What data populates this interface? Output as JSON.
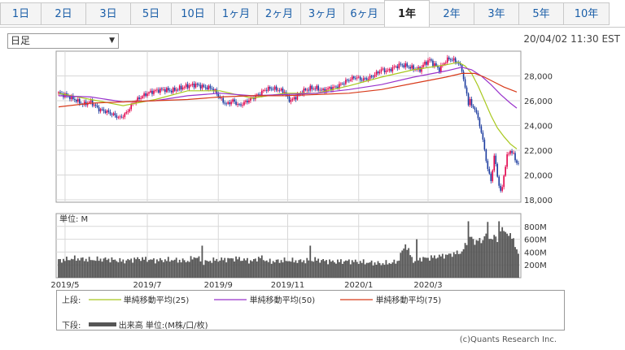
{
  "tabs": [
    "1日",
    "2日",
    "3日",
    "5日",
    "10日",
    "1ヶ月",
    "2ヶ月",
    "3ヶ月",
    "6ヶ月",
    "1年",
    "2年",
    "3年",
    "5年",
    "10年"
  ],
  "active_tab": "1年",
  "period_select": {
    "value": "日足"
  },
  "datetime": "20/04/02 11:30 EST",
  "volume_unit": "単位: M",
  "legend": {
    "upper_label": "上段:",
    "ma25": "単純移動平均(25)",
    "ma50": "単純移動平均(50)",
    "ma75": "単純移動平均(75)",
    "lower_label": "下段:",
    "volume": "出来高 単位:(M株/口/枚)"
  },
  "colors": {
    "ma25": "#a8c81e",
    "ma50": "#9933cc",
    "ma75": "#d83a1a",
    "up": "#e2004a",
    "down": "#1a3a9e",
    "volume": "#555555"
  },
  "copyright": "(c)Quants Research Inc.",
  "chart_data": [
    {
      "type": "line",
      "title": "",
      "x_tick_labels": [
        "2019/5",
        "2019/7",
        "2019/9",
        "2019/11",
        "2020/1",
        "2020/3"
      ],
      "y_tick_labels": [
        "18,000",
        "20,000",
        "22,000",
        "24,000",
        "26,000",
        "28,000"
      ],
      "ylim": [
        17800,
        30000
      ],
      "close_points": [
        [
          0,
          26600
        ],
        [
          5,
          26400
        ],
        [
          10,
          26100
        ],
        [
          15,
          25700
        ],
        [
          20,
          25900
        ],
        [
          25,
          25300
        ],
        [
          30,
          25100
        ],
        [
          35,
          24800
        ],
        [
          38,
          24600
        ],
        [
          42,
          25000
        ],
        [
          46,
          25800
        ],
        [
          50,
          26200
        ],
        [
          55,
          26600
        ],
        [
          60,
          26800
        ],
        [
          65,
          26900
        ],
        [
          70,
          26800
        ],
        [
          75,
          27000
        ],
        [
          80,
          27200
        ],
        [
          85,
          27300
        ],
        [
          90,
          27100
        ],
        [
          95,
          27000
        ],
        [
          98,
          26600
        ],
        [
          100,
          26200
        ],
        [
          104,
          25700
        ],
        [
          108,
          26000
        ],
        [
          112,
          25600
        ],
        [
          116,
          25900
        ],
        [
          120,
          26200
        ],
        [
          124,
          26500
        ],
        [
          128,
          26900
        ],
        [
          132,
          27000
        ],
        [
          136,
          26900
        ],
        [
          140,
          26700
        ],
        [
          142,
          26200
        ],
        [
          144,
          26000
        ],
        [
          148,
          26400
        ],
        [
          152,
          26800
        ],
        [
          156,
          27000
        ],
        [
          160,
          27000
        ],
        [
          164,
          26800
        ],
        [
          168,
          27000
        ],
        [
          172,
          27100
        ],
        [
          176,
          27400
        ],
        [
          180,
          27700
        ],
        [
          184,
          27900
        ],
        [
          188,
          27700
        ],
        [
          192,
          27800
        ],
        [
          196,
          28100
        ],
        [
          200,
          28500
        ],
        [
          204,
          28400
        ],
        [
          208,
          28700
        ],
        [
          212,
          28900
        ],
        [
          216,
          28800
        ],
        [
          220,
          28600
        ],
        [
          224,
          28500
        ],
        [
          226,
          28900
        ],
        [
          228,
          29100
        ],
        [
          230,
          29300
        ],
        [
          232,
          29000
        ],
        [
          234,
          28800
        ],
        [
          236,
          28500
        ],
        [
          238,
          28900
        ],
        [
          240,
          29200
        ],
        [
          242,
          29400
        ],
        [
          244,
          29300
        ],
        [
          246,
          29200
        ],
        [
          248,
          29000
        ],
        [
          250,
          28500
        ],
        [
          252,
          27000
        ],
        [
          253,
          26500
        ],
        [
          254,
          25800
        ],
        [
          255,
          26100
        ],
        [
          256,
          25500
        ],
        [
          258,
          25400
        ],
        [
          260,
          24500
        ],
        [
          262,
          23500
        ],
        [
          264,
          22000
        ],
        [
          266,
          20500
        ],
        [
          268,
          19500
        ],
        [
          270,
          21500
        ],
        [
          271,
          20800
        ],
        [
          272,
          19900
        ],
        [
          274,
          18600
        ],
        [
          275,
          19000
        ],
        [
          276,
          20000
        ],
        [
          278,
          21500
        ],
        [
          280,
          22000
        ],
        [
          282,
          21600
        ],
        [
          284,
          21000
        ],
        [
          285,
          20900
        ]
      ],
      "ma25_points": [
        [
          0,
          26600
        ],
        [
          20,
          26100
        ],
        [
          40,
          25600
        ],
        [
          60,
          26100
        ],
        [
          80,
          26800
        ],
        [
          100,
          26800
        ],
        [
          120,
          26200
        ],
        [
          140,
          26600
        ],
        [
          160,
          26600
        ],
        [
          180,
          27200
        ],
        [
          200,
          27900
        ],
        [
          220,
          28500
        ],
        [
          240,
          28900
        ],
        [
          248,
          29100
        ],
        [
          252,
          28800
        ],
        [
          256,
          28200
        ],
        [
          260,
          27200
        ],
        [
          264,
          26000
        ],
        [
          268,
          24800
        ],
        [
          272,
          23800
        ],
        [
          276,
          23100
        ],
        [
          280,
          22500
        ],
        [
          284,
          22100
        ]
      ],
      "ma50_points": [
        [
          0,
          26400
        ],
        [
          20,
          26300
        ],
        [
          40,
          25900
        ],
        [
          60,
          26000
        ],
        [
          80,
          26400
        ],
        [
          100,
          26600
        ],
        [
          120,
          26400
        ],
        [
          140,
          26500
        ],
        [
          160,
          26600
        ],
        [
          180,
          26900
        ],
        [
          200,
          27300
        ],
        [
          220,
          27900
        ],
        [
          240,
          28400
        ],
        [
          250,
          28700
        ],
        [
          256,
          28500
        ],
        [
          262,
          28000
        ],
        [
          268,
          27300
        ],
        [
          274,
          26500
        ],
        [
          280,
          25800
        ],
        [
          284,
          25400
        ]
      ],
      "ma75_points": [
        [
          0,
          25500
        ],
        [
          20,
          25800
        ],
        [
          40,
          25900
        ],
        [
          60,
          26000
        ],
        [
          80,
          26100
        ],
        [
          100,
          26300
        ],
        [
          120,
          26400
        ],
        [
          140,
          26400
        ],
        [
          160,
          26500
        ],
        [
          180,
          26600
        ],
        [
          200,
          26900
        ],
        [
          220,
          27400
        ],
        [
          240,
          27900
        ],
        [
          250,
          28200
        ],
        [
          258,
          28200
        ],
        [
          264,
          27900
        ],
        [
          270,
          27500
        ],
        [
          276,
          27100
        ],
        [
          284,
          26700
        ]
      ]
    },
    {
      "type": "bar",
      "title": "",
      "ylabel": "単位: M",
      "y_tick_labels": [
        "200M",
        "400M",
        "600M",
        "800M"
      ],
      "ylim": [
        0,
        1000
      ],
      "volume_points": [
        [
          0,
          270
        ],
        [
          10,
          300
        ],
        [
          20,
          280
        ],
        [
          30,
          290
        ],
        [
          40,
          260
        ],
        [
          50,
          300
        ],
        [
          60,
          270
        ],
        [
          70,
          280
        ],
        [
          80,
          260
        ],
        [
          85,
          330
        ],
        [
          90,
          240
        ],
        [
          95,
          270
        ],
        [
          100,
          280
        ],
        [
          110,
          300
        ],
        [
          120,
          260
        ],
        [
          125,
          320
        ],
        [
          130,
          250
        ],
        [
          140,
          270
        ],
        [
          150,
          260
        ],
        [
          160,
          280
        ],
        [
          170,
          250
        ],
        [
          180,
          260
        ],
        [
          190,
          240
        ],
        [
          200,
          220
        ],
        [
          205,
          230
        ],
        [
          210,
          250
        ],
        [
          215,
          520
        ],
        [
          220,
          260
        ],
        [
          225,
          300
        ],
        [
          230,
          310
        ],
        [
          240,
          350
        ],
        [
          250,
          400
        ],
        [
          255,
          650
        ],
        [
          258,
          550
        ],
        [
          260,
          600
        ],
        [
          262,
          550
        ],
        [
          265,
          700
        ],
        [
          268,
          600
        ],
        [
          270,
          650
        ],
        [
          272,
          580
        ],
        [
          274,
          760
        ],
        [
          278,
          700
        ],
        [
          282,
          600
        ],
        [
          285,
          350
        ]
      ],
      "volume_spikes": [
        [
          89,
          500
        ],
        [
          156,
          500
        ],
        [
          222,
          600
        ],
        [
          254,
          880
        ],
        [
          266,
          870
        ],
        [
          273,
          880
        ]
      ]
    }
  ]
}
